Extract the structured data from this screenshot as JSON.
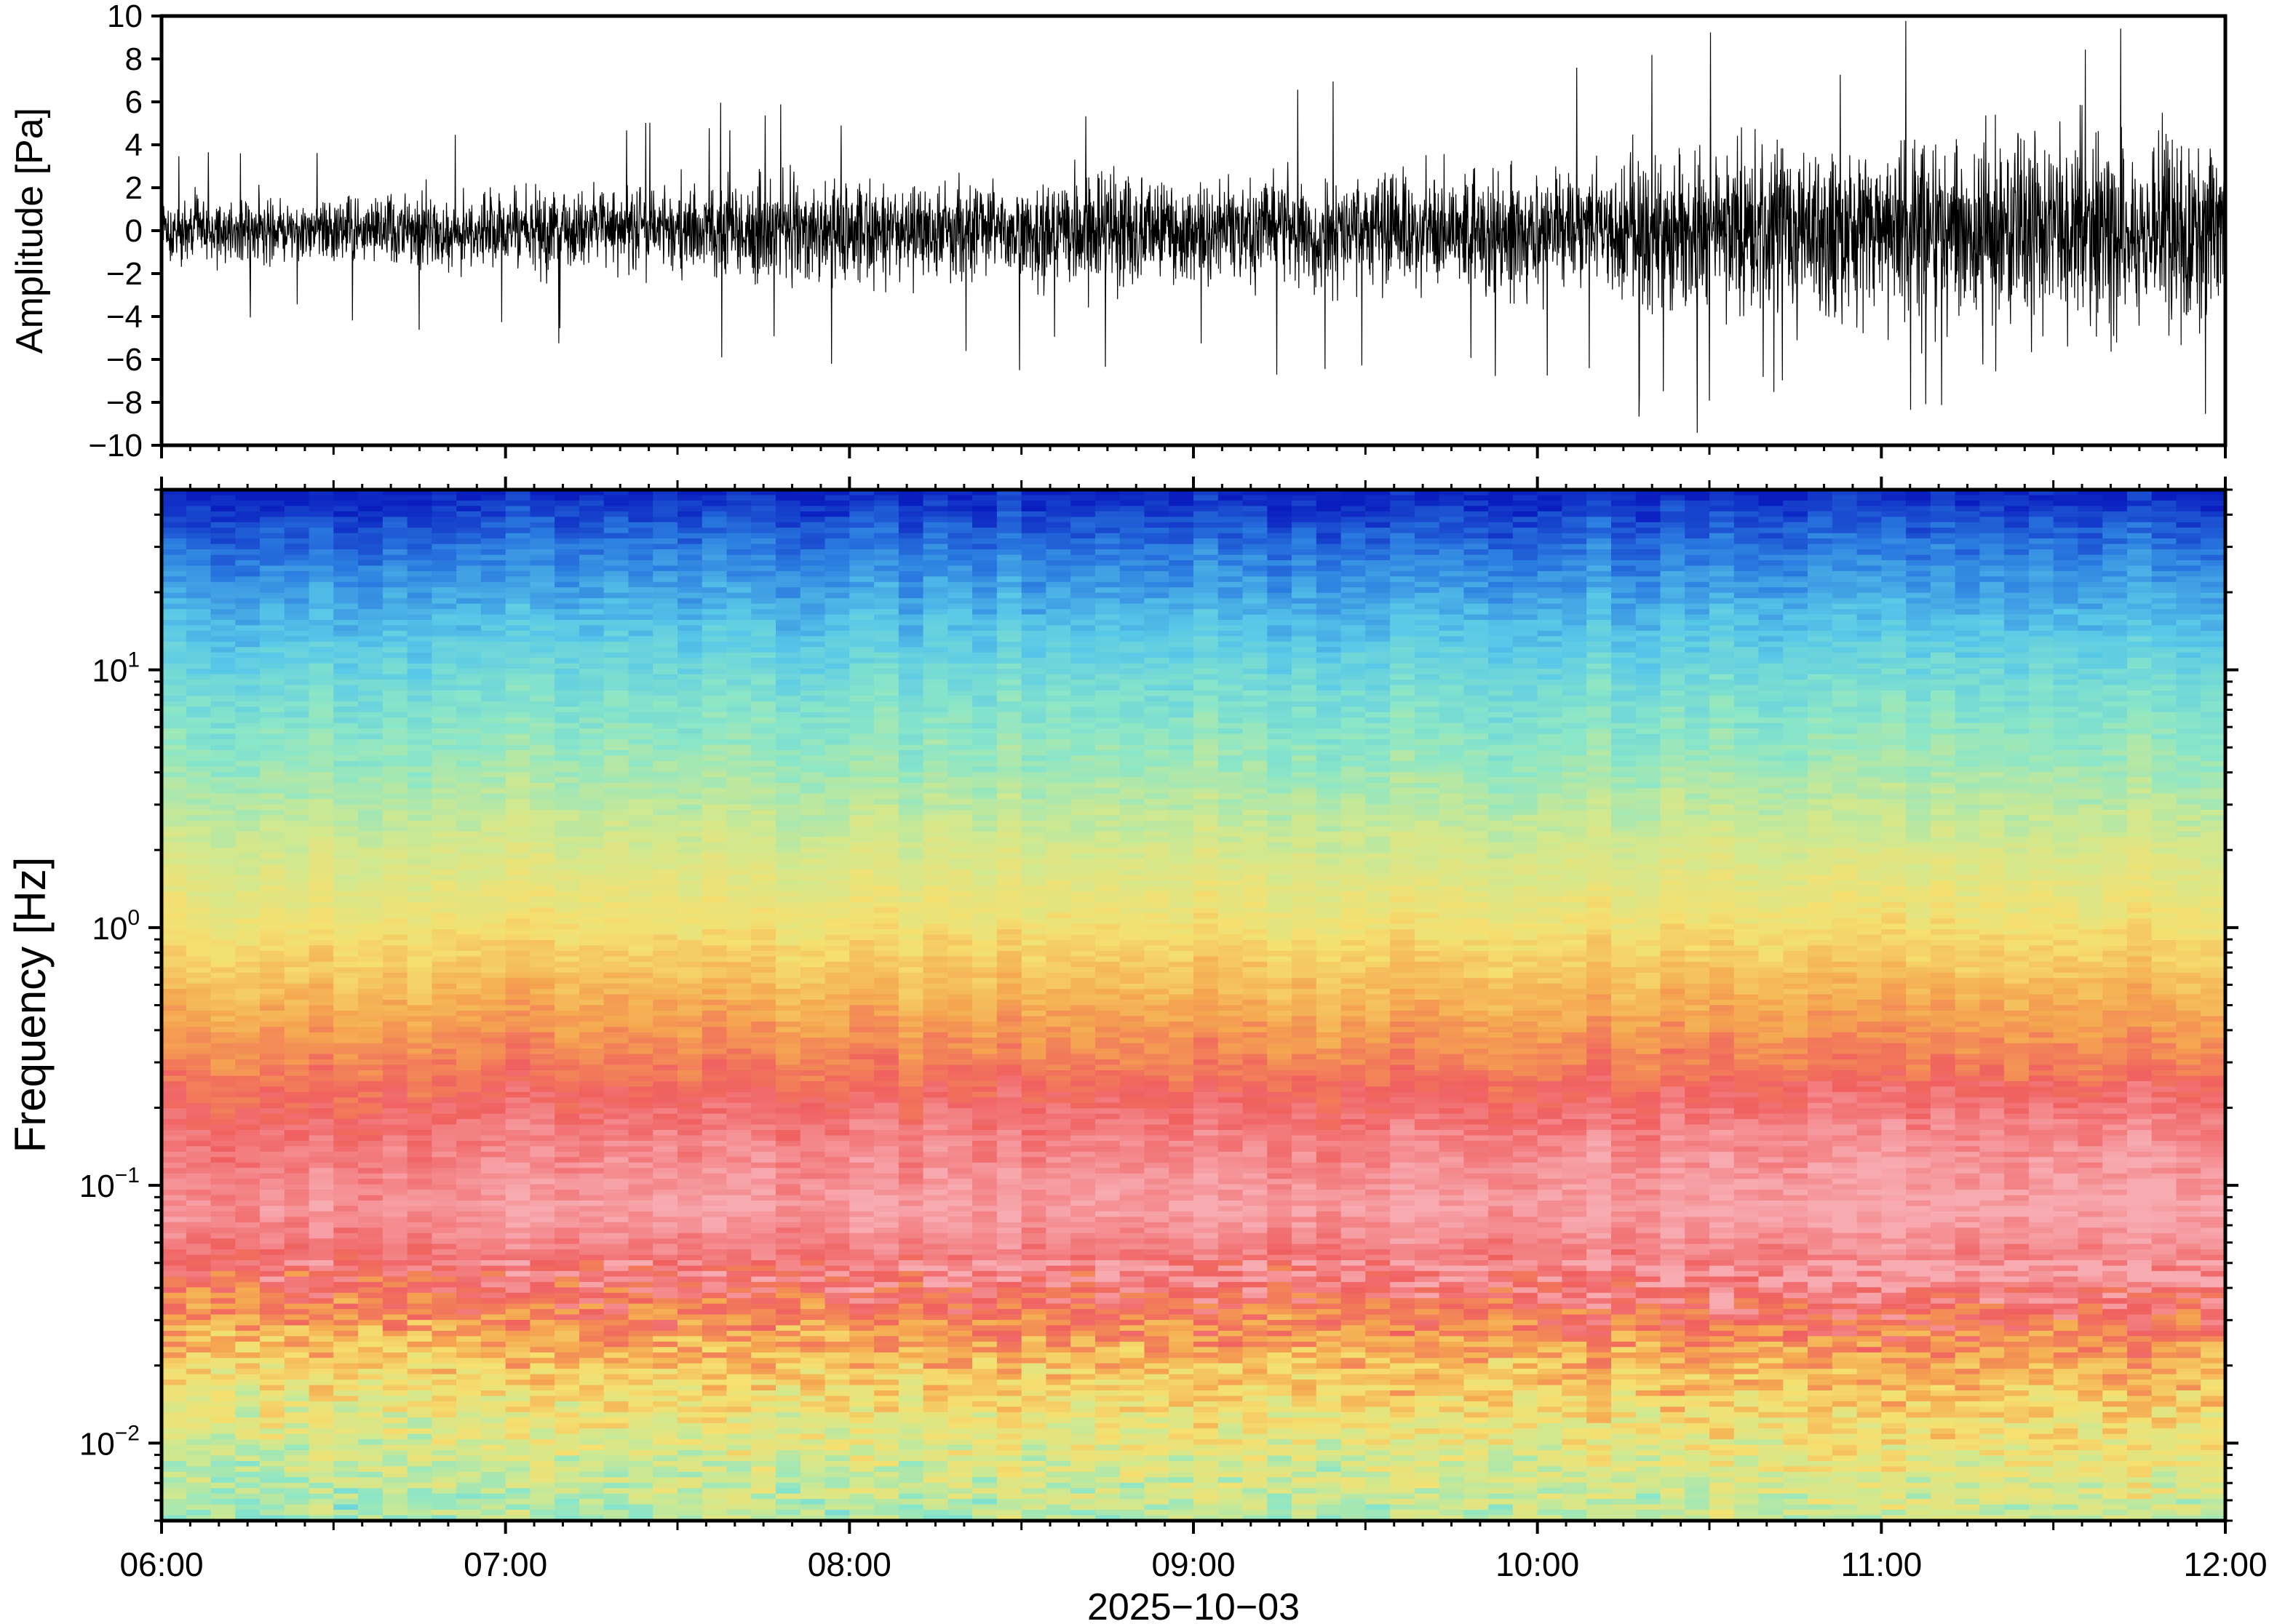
{
  "chart_data": [
    {
      "type": "line",
      "panel": "waveform",
      "ylabel": "Amplitude [Pa]",
      "ylim": [
        -10,
        10
      ],
      "yticks": [
        -10,
        -8,
        -6,
        -4,
        -2,
        0,
        2,
        4,
        6,
        8,
        10
      ],
      "ytick_labels": [
        "−10",
        "−8",
        "−6",
        "−4",
        "−2",
        "0",
        "2",
        "4",
        "6",
        "8",
        "10"
      ],
      "xlim": [
        "06:00",
        "12:00"
      ],
      "line_color": "#000000",
      "envelope": {
        "time": [
          "06:00",
          "06:30",
          "07:00",
          "07:30",
          "08:00",
          "08:30",
          "09:00",
          "09:30",
          "10:00",
          "10:30",
          "11:00",
          "11:30",
          "12:00"
        ],
        "typical_abs_amplitude": [
          1.2,
          1.4,
          1.6,
          1.8,
          2.0,
          2.1,
          2.2,
          2.2,
          2.5,
          3.2,
          3.8,
          4.0,
          3.8
        ],
        "peak_abs_amplitude": [
          4.5,
          5.0,
          5.5,
          5.8,
          6.5,
          7.0,
          7.0,
          7.5,
          8.5,
          9.5,
          10,
          10,
          10
        ]
      }
    },
    {
      "type": "heatmap",
      "panel": "spectrogram",
      "ylabel": "Frequency [Hz]",
      "yscale": "log",
      "ylim": [
        0.005,
        50
      ],
      "yticks": [
        {
          "base": "10",
          "exp": "−2"
        },
        {
          "base": "10",
          "exp": "−1"
        },
        {
          "base": "10",
          "exp": "0"
        },
        {
          "base": "10",
          "exp": "1"
        }
      ],
      "xlabel": "2025−10−03",
      "xticks": [
        "06:00",
        "07:00",
        "08:00",
        "09:00",
        "10:00",
        "11:00",
        "12:00"
      ],
      "colormap": [
        "#0a1ec0",
        "#2a7ae0",
        "#58c8e8",
        "#8ae6c8",
        "#cfe890",
        "#f5e070",
        "#f5a850",
        "#f06060",
        "#f7aab0"
      ],
      "spectrum_profile": {
        "frequency_hz": [
          50,
          30,
          15,
          8,
          4,
          2,
          1,
          0.5,
          0.3,
          0.15,
          0.08,
          0.04,
          0.02,
          0.01,
          0.005
        ],
        "color_level": [
          0.0,
          0.12,
          0.24,
          0.34,
          0.42,
          0.52,
          0.62,
          0.74,
          0.82,
          0.92,
          0.97,
          0.86,
          0.66,
          0.52,
          0.42
        ]
      }
    }
  ]
}
